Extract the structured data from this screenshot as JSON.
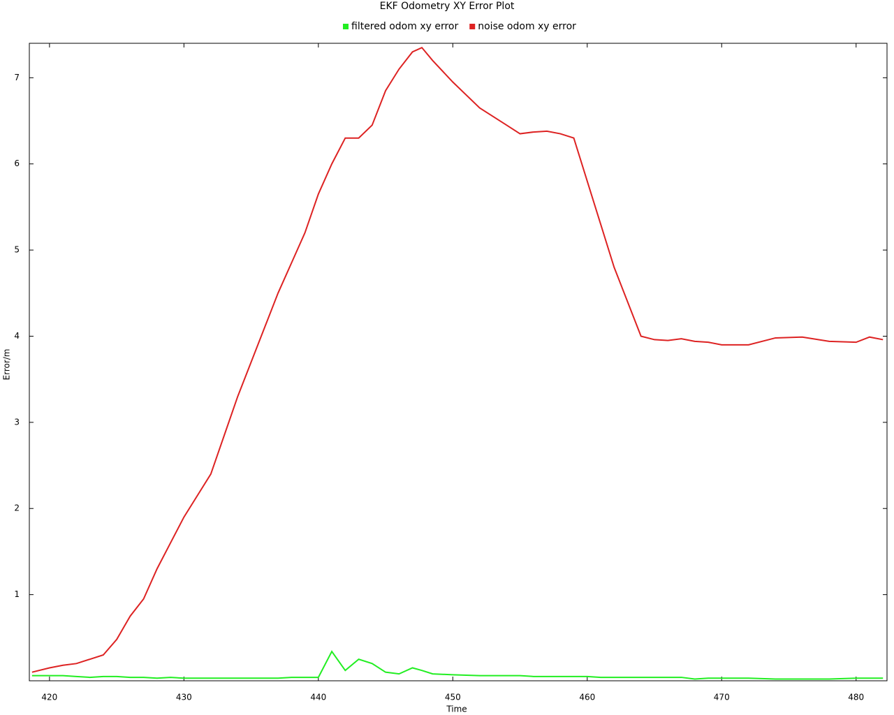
{
  "chart_data": {
    "type": "line",
    "title": "EKF Odometry XY Error Plot",
    "x_label": "Time",
    "y_label": "Error/m",
    "x": [
      418.7,
      420,
      421,
      422,
      423,
      424,
      425,
      426,
      427,
      428,
      429,
      430,
      431,
      432,
      433,
      434,
      435,
      436,
      437,
      438,
      439,
      440,
      441,
      442,
      443,
      444,
      445,
      446,
      447,
      447.7,
      448.5,
      450,
      452,
      454,
      455,
      456,
      457,
      458,
      459,
      460,
      461,
      462,
      463,
      464,
      465,
      466,
      467,
      468,
      469,
      470,
      472,
      474,
      476,
      478,
      480,
      481,
      482
    ],
    "series": [
      {
        "name": "filtered odom xy error",
        "color": "#22ee22",
        "values": [
          0.06,
          0.06,
          0.06,
          0.05,
          0.04,
          0.05,
          0.05,
          0.04,
          0.04,
          0.03,
          0.04,
          0.03,
          0.03,
          0.03,
          0.03,
          0.03,
          0.03,
          0.03,
          0.03,
          0.04,
          0.04,
          0.04,
          0.34,
          0.12,
          0.25,
          0.2,
          0.1,
          0.08,
          0.15,
          0.12,
          0.08,
          0.07,
          0.06,
          0.06,
          0.06,
          0.05,
          0.05,
          0.05,
          0.05,
          0.05,
          0.04,
          0.04,
          0.04,
          0.04,
          0.04,
          0.04,
          0.04,
          0.02,
          0.03,
          0.03,
          0.03,
          0.02,
          0.02,
          0.02,
          0.03,
          0.03,
          0.03
        ]
      },
      {
        "name": "noise odom xy error",
        "color": "#dd2222",
        "values": [
          0.1,
          0.15,
          0.18,
          0.2,
          0.25,
          0.3,
          0.48,
          0.75,
          0.95,
          1.3,
          1.6,
          1.9,
          2.15,
          2.4,
          2.85,
          3.3,
          3.7,
          4.1,
          4.5,
          4.85,
          5.2,
          5.65,
          6.0,
          6.3,
          6.3,
          6.45,
          6.85,
          7.1,
          7.3,
          7.35,
          7.2,
          6.95,
          6.65,
          6.45,
          6.35,
          6.37,
          6.38,
          6.35,
          6.3,
          5.8,
          5.3,
          4.8,
          4.4,
          4.0,
          3.96,
          3.95,
          3.97,
          3.94,
          3.93,
          3.9,
          3.9,
          3.98,
          3.99,
          3.94,
          3.93,
          3.99,
          3.96
        ]
      }
    ],
    "xlim": [
      418.5,
      482.3
    ],
    "ylim": [
      0,
      7.4
    ],
    "xticks": [
      420,
      430,
      440,
      450,
      460,
      470,
      480
    ],
    "yticks": [
      1,
      2,
      3,
      4,
      5,
      6,
      7
    ]
  }
}
